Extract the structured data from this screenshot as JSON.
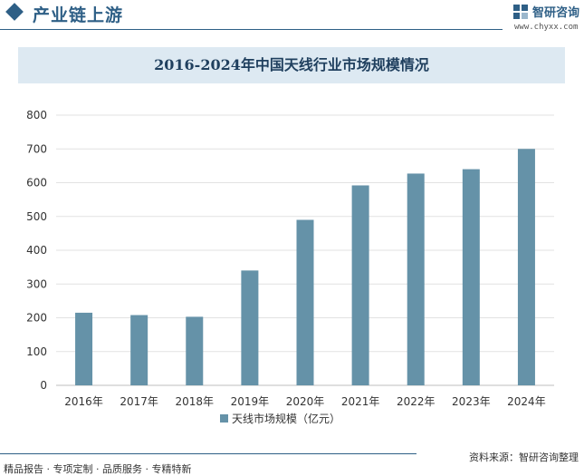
{
  "header": {
    "section_title": "产业链上游",
    "brand_name": "智研咨询",
    "brand_url": "www.chyxx.com"
  },
  "chart_data": {
    "type": "bar",
    "title": "2016-2024年中国天线行业市场规模情况",
    "categories": [
      "2016年",
      "2017年",
      "2018年",
      "2019年",
      "2020年",
      "2021年",
      "2022年",
      "2023年",
      "2024年"
    ],
    "series": [
      {
        "name": "天线市场规模（亿元）",
        "values": [
          215,
          208,
          203,
          340,
          490,
          592,
          627,
          640,
          700
        ],
        "color": "#6592a8"
      }
    ],
    "ylim": [
      0,
      800
    ],
    "yticks": [
      0,
      100,
      200,
      300,
      400,
      500,
      600,
      700,
      800
    ],
    "grid": true,
    "legend_position": "bottom"
  },
  "footer": {
    "tagline": "精品报告 · 专项定制 · 品质服务 · 专精特新",
    "source": "资料来源：智研咨询整理"
  }
}
